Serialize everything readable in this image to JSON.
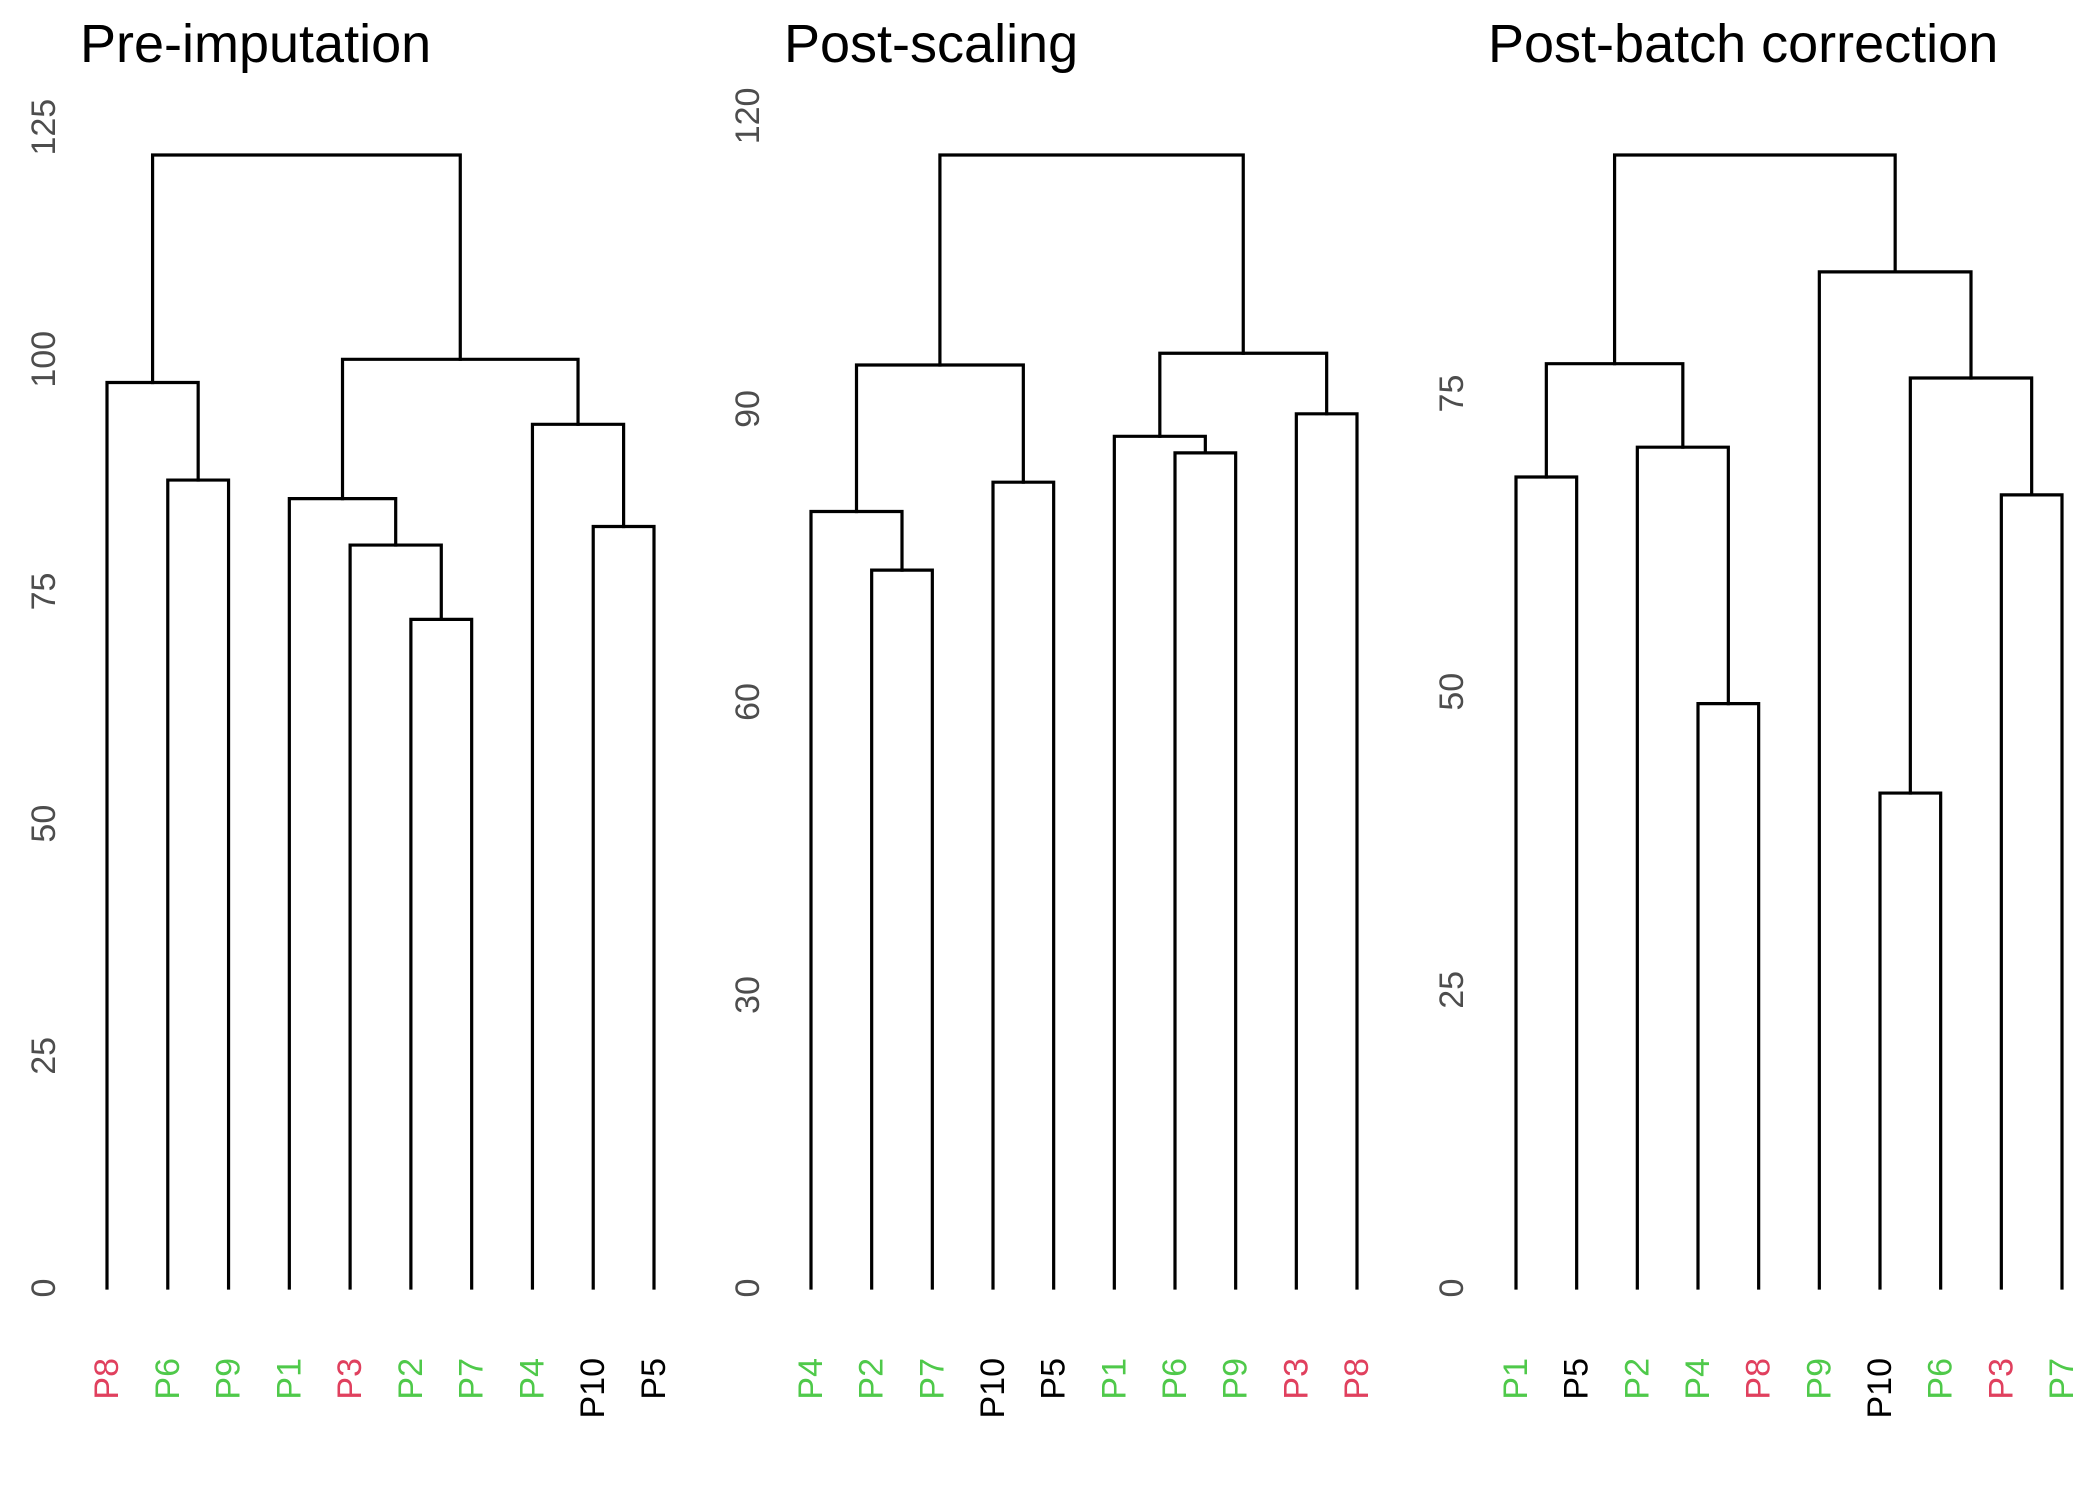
{
  "colors": {
    "green": "#4fc94a",
    "red": "#e0405e",
    "black": "#000000",
    "branch": "#000000",
    "tick": "#4d4d4d"
  },
  "chart_data": [
    {
      "type": "dendrogram",
      "title": "Pre-imputation",
      "ylim": [
        0,
        125
      ],
      "yticks": [
        0,
        25,
        50,
        75,
        100,
        125
      ],
      "leaves": [
        {
          "label": "P8",
          "color": "red"
        },
        {
          "label": "P6",
          "color": "green"
        },
        {
          "label": "P9",
          "color": "green"
        },
        {
          "label": "P1",
          "color": "green"
        },
        {
          "label": "P3",
          "color": "red"
        },
        {
          "label": "P2",
          "color": "green"
        },
        {
          "label": "P7",
          "color": "green"
        },
        {
          "label": "P4",
          "color": "green"
        },
        {
          "label": "P10",
          "color": "black"
        },
        {
          "label": "P5",
          "color": "black"
        }
      ],
      "merges": [
        [
          -2,
          -3,
          87
        ],
        [
          -6,
          -7,
          72
        ],
        [
          -5,
          2,
          80
        ],
        [
          -4,
          3,
          85
        ],
        [
          -9,
          -10,
          82
        ],
        [
          -8,
          5,
          93
        ],
        [
          4,
          6,
          100
        ],
        [
          -1,
          1,
          97.5
        ],
        [
          8,
          7,
          122
        ]
      ]
    },
    {
      "type": "dendrogram",
      "title": "Post-scaling",
      "ylim": [
        0,
        120
      ],
      "yticks": [
        0,
        30,
        60,
        90,
        120
      ],
      "leaves": [
        {
          "label": "P4",
          "color": "green"
        },
        {
          "label": "P2",
          "color": "green"
        },
        {
          "label": "P7",
          "color": "green"
        },
        {
          "label": "P10",
          "color": "black"
        },
        {
          "label": "P5",
          "color": "black"
        },
        {
          "label": "P1",
          "color": "green"
        },
        {
          "label": "P6",
          "color": "green"
        },
        {
          "label": "P9",
          "color": "green"
        },
        {
          "label": "P3",
          "color": "red"
        },
        {
          "label": "P8",
          "color": "red"
        }
      ],
      "merges": [
        [
          -2,
          -3,
          73.5
        ],
        [
          -1,
          1,
          79.5
        ],
        [
          -4,
          -5,
          82.5
        ],
        [
          2,
          3,
          94.5
        ],
        [
          -7,
          -8,
          85.5
        ],
        [
          -6,
          5,
          87.2
        ],
        [
          -9,
          -10,
          89.5
        ],
        [
          6,
          7,
          95.7
        ],
        [
          4,
          8,
          116
        ]
      ]
    },
    {
      "type": "dendrogram",
      "title": "Post-batch correction",
      "ylim": [
        0,
        93
      ],
      "yticks": [
        0,
        25,
        50,
        75
      ],
      "leaves": [
        {
          "label": "P1",
          "color": "green"
        },
        {
          "label": "P5",
          "color": "black"
        },
        {
          "label": "P2",
          "color": "green"
        },
        {
          "label": "P4",
          "color": "green"
        },
        {
          "label": "P8",
          "color": "red"
        },
        {
          "label": "P9",
          "color": "green"
        },
        {
          "label": "P10",
          "color": "black"
        },
        {
          "label": "P6",
          "color": "green"
        },
        {
          "label": "P3",
          "color": "red"
        },
        {
          "label": "P7",
          "color": "green"
        }
      ],
      "merges": [
        [
          -1,
          -2,
          68
        ],
        [
          -4,
          -5,
          49
        ],
        [
          -3,
          2,
          70.5
        ],
        [
          1,
          3,
          77.5
        ],
        [
          -7,
          -8,
          41.5
        ],
        [
          -9,
          -10,
          66.5
        ],
        [
          5,
          6,
          76.3
        ],
        [
          -6,
          7,
          85.2
        ],
        [
          4,
          8,
          95
        ]
      ]
    }
  ]
}
